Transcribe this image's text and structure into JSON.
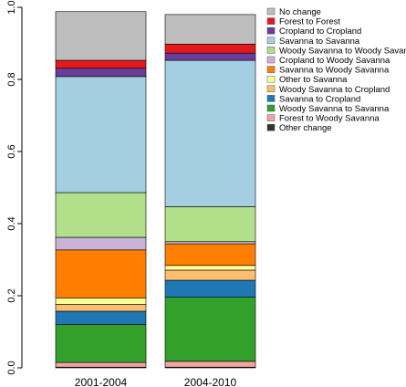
{
  "chart_data": {
    "type": "bar",
    "stacked": true,
    "categories": [
      "2001-2004",
      "2004-2010"
    ],
    "ylim": [
      0,
      1.0
    ],
    "yticks": [
      0.0,
      0.2,
      0.4,
      0.6,
      0.8,
      1.0
    ],
    "ytick_labels": [
      "0.0",
      "0.2",
      "0.4",
      "0.6",
      "0.8",
      "1.0"
    ],
    "legend_position": "top-right",
    "grid": false,
    "series": [
      {
        "name": "Other change",
        "color": "#333333",
        "values": [
          0.002,
          0.002
        ]
      },
      {
        "name": "Forest to Woody Savanna",
        "color": "#f4a3a3",
        "values": [
          0.013,
          0.016
        ]
      },
      {
        "name": "Woody Savanna to Savanna",
        "color": "#33a02c",
        "values": [
          0.105,
          0.178
        ]
      },
      {
        "name": "Savanna to Cropland",
        "color": "#1f78b4",
        "values": [
          0.037,
          0.047
        ]
      },
      {
        "name": "Woody Savanna to Cropland",
        "color": "#fdbf6f",
        "values": [
          0.019,
          0.028
        ]
      },
      {
        "name": "Other to Savanna",
        "color": "#ffff99",
        "values": [
          0.018,
          0.013
        ]
      },
      {
        "name": "Savanna to Woody Savanna",
        "color": "#ff7f00",
        "values": [
          0.133,
          0.06
        ]
      },
      {
        "name": "Cropland to Woody Savanna",
        "color": "#cab2d6",
        "values": [
          0.035,
          0.006
        ]
      },
      {
        "name": "Woody Savanna to Woody Savanna",
        "color": "#b2df8a",
        "values": [
          0.124,
          0.097
        ]
      },
      {
        "name": "Savanna to Savanna",
        "color": "#a6cee3",
        "values": [
          0.322,
          0.406
        ]
      },
      {
        "name": "Cropland to Cropland",
        "color": "#6a3d9a",
        "values": [
          0.023,
          0.02
        ]
      },
      {
        "name": "Forest to Forest",
        "color": "#e31a1c",
        "values": [
          0.022,
          0.025
        ]
      },
      {
        "name": "No change",
        "color": "#bdbdbd",
        "values": [
          0.135,
          0.082
        ]
      }
    ]
  }
}
